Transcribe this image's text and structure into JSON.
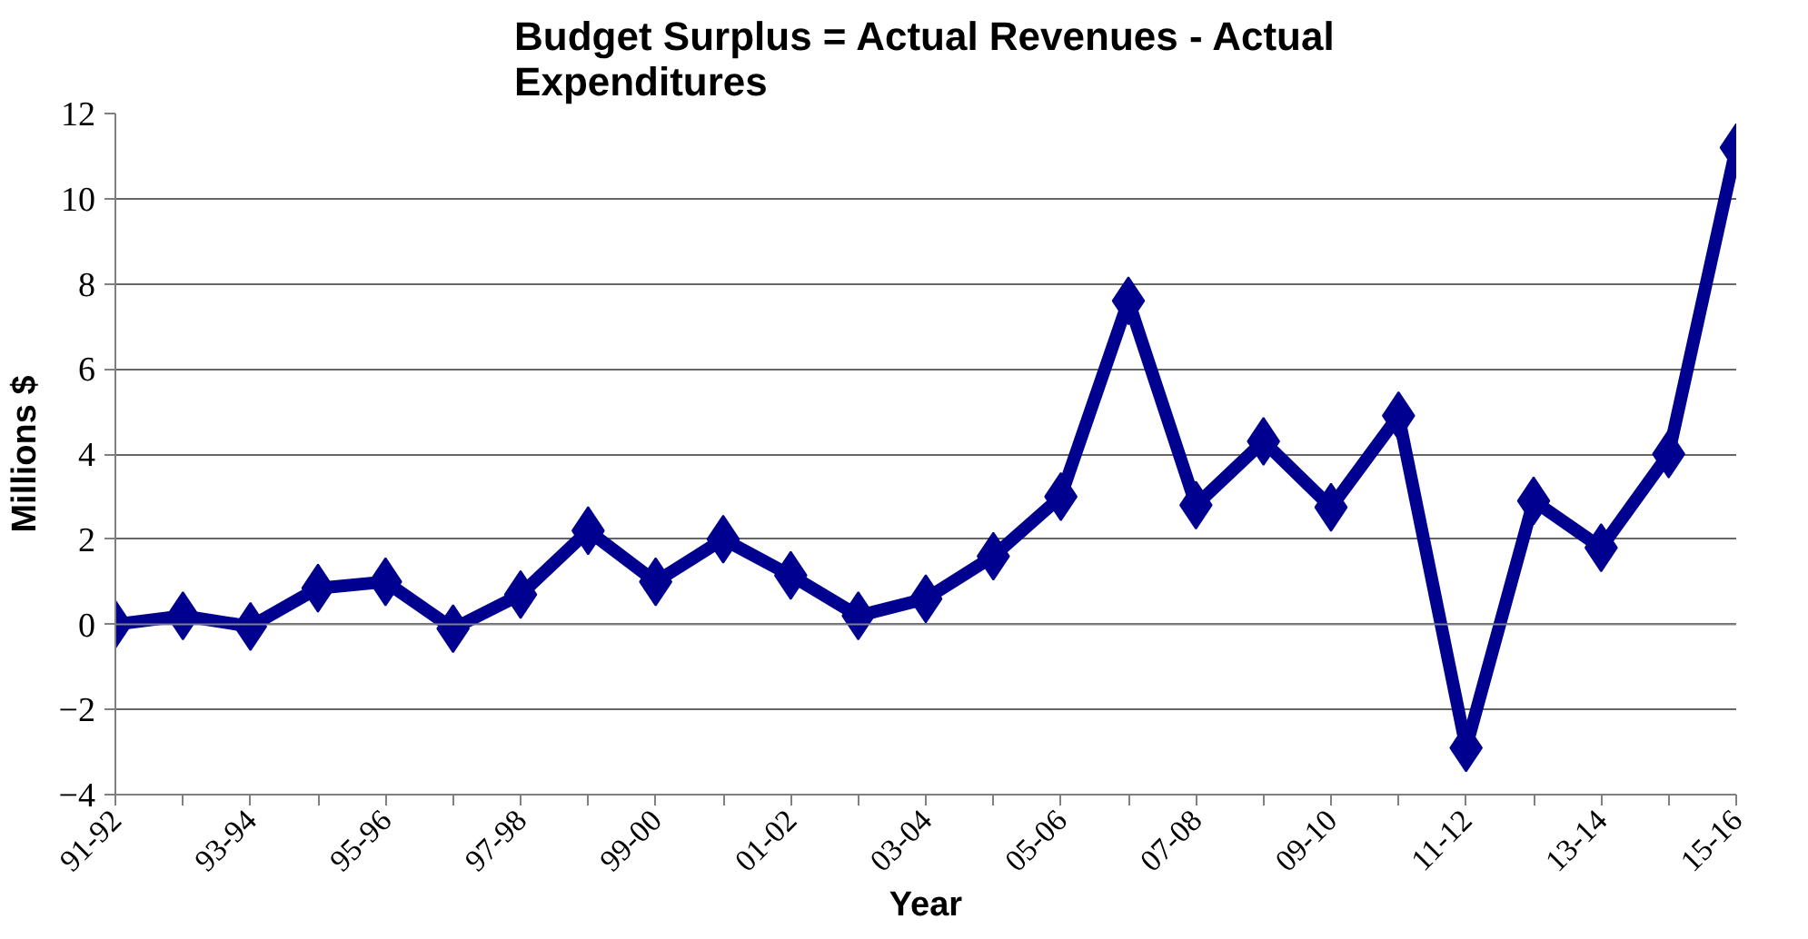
{
  "chart_data": {
    "type": "line",
    "title": "Budget Surplus = Actual Revenues - Actual Expenditures",
    "xlabel": "Year",
    "ylabel": "Millions $",
    "categories": [
      "91-92",
      null,
      "93-94",
      null,
      "95-96",
      null,
      "97-98",
      null,
      "99-00",
      null,
      "01-02",
      null,
      "03-04",
      null,
      "05-06",
      null,
      "07-08",
      null,
      "09-10",
      null,
      "11-12",
      null,
      "13-14",
      null,
      "15-16"
    ],
    "series": [
      {
        "color": "#000090",
        "values": [
          0,
          0.2,
          -0.05,
          0.85,
          1.0,
          -0.1,
          0.7,
          2.2,
          1.0,
          2.0,
          1.15,
          0.2,
          0.6,
          1.6,
          3.0,
          7.6,
          2.8,
          4.3,
          2.75,
          4.9,
          -2.9,
          2.9,
          1.8,
          4.0,
          11.2
        ]
      }
    ],
    "ylim": [
      -4,
      12
    ],
    "yticks": [
      -4,
      -2,
      0,
      2,
      4,
      6,
      8,
      10,
      12
    ],
    "grid": "y",
    "marker": "diamond",
    "line_style": "solid"
  }
}
